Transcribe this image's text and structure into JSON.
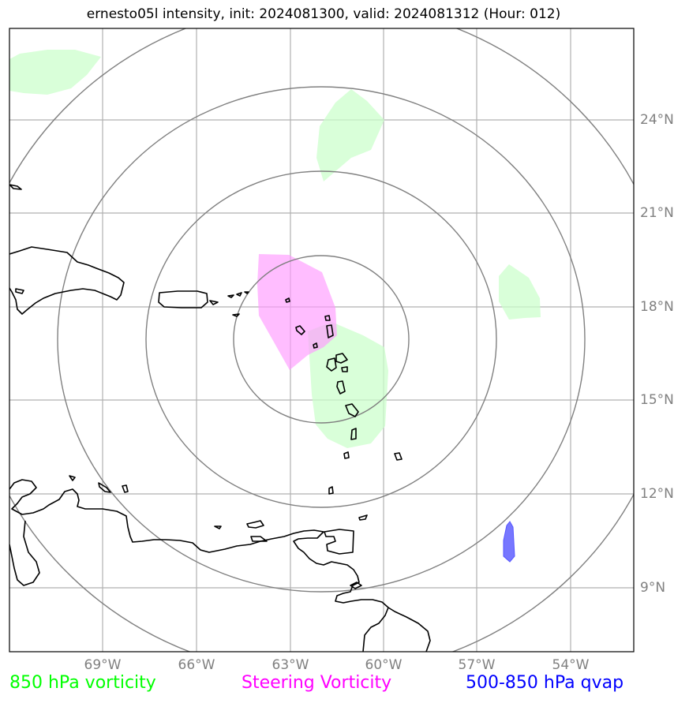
{
  "title": "ernesto05l intensity, init: 2024081300, valid: 2024081312 (Hour: 012)",
  "lon_labels": [
    "69°W",
    "66°W",
    "63°W",
    "60°W",
    "57°W",
    "54°W"
  ],
  "lat_labels": [
    "24°N",
    "21°N",
    "18°N",
    "15°N",
    "12°N",
    "9°N"
  ],
  "legend": [
    {
      "label": "850 hPa vorticity",
      "color": "#00ff00"
    },
    {
      "label": "Steering Vorticity",
      "color": "#ff00ff"
    },
    {
      "label": "500-850 hPa qvap",
      "color": "#0000ff"
    }
  ],
  "colors": {
    "vorticity_fill": "#ccffcc",
    "steering_fill": "#ff99ff",
    "qvap_fill": "#7777ff",
    "grid": "#b0b0b0",
    "range_rings": "#808080",
    "coast": "#000000"
  }
}
